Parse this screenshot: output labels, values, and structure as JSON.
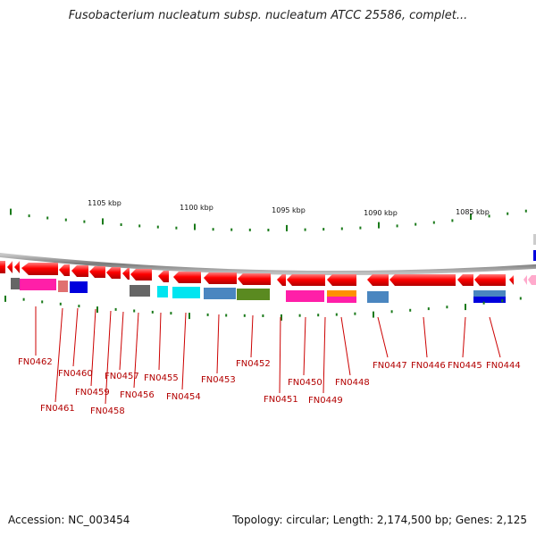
{
  "title": "Fusobacterium nucleatum subsp. nucleatum ATCC 25586, complet...",
  "accession": "Accession: NC_003454",
  "topology": "Topology: circular; Length: 2,174,500 bp; Genes: 2,125",
  "colors": {
    "backbone": "#888888",
    "gene_arrow": "#ff0000",
    "label": "#b30000",
    "tick": "#1a7a1a"
  },
  "ruler": [
    {
      "label": "1105 kbp",
      "kbp": 1105
    },
    {
      "label": "1100 kbp",
      "kbp": 1100
    },
    {
      "label": "1095 kbp",
      "kbp": 1095
    },
    {
      "label": "1090 kbp",
      "kbp": 1090
    },
    {
      "label": "1085 kbp",
      "kbp": 1085
    }
  ],
  "genes": [
    {
      "label": "FN0462"
    },
    {
      "label": "FN0461"
    },
    {
      "label": "FN0460"
    },
    {
      "label": "FN0459"
    },
    {
      "label": "FN0458"
    },
    {
      "label": "FN0457"
    },
    {
      "label": "FN0456"
    },
    {
      "label": "FN0455"
    },
    {
      "label": "FN0454"
    },
    {
      "label": "FN0453"
    },
    {
      "label": "FN0452"
    },
    {
      "label": "FN0451"
    },
    {
      "label": "FN0450"
    },
    {
      "label": "FN0449"
    },
    {
      "label": "FN0448"
    },
    {
      "label": "FN0447"
    },
    {
      "label": "FN0446"
    },
    {
      "label": "FN0445"
    },
    {
      "label": "FN0444"
    }
  ],
  "feature_colors": [
    "#ff1fa8",
    "#e07070",
    "#0000dd",
    "#666666",
    "#00e5f0",
    "#4a86c0",
    "#5a8a20",
    "#ff9000",
    "#ff33aa",
    "#ffaacc",
    "#cccccc"
  ]
}
